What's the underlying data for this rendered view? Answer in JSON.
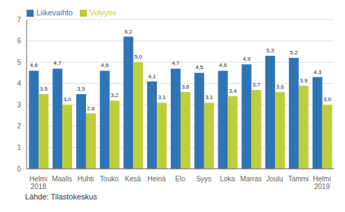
{
  "chart_data": {
    "type": "bar",
    "categories": [
      "Helmi\n2018",
      "Maalis",
      "Huhti",
      "Touko",
      "Kesä",
      "Heinä",
      "Elo",
      "Syys",
      "Loka",
      "Marras",
      "Joulu",
      "Tammi",
      "Helmi\n2019"
    ],
    "series": [
      {
        "name": "Liikevaihto",
        "color": "#2E75B6",
        "values": [
          4.6,
          4.7,
          3.5,
          4.6,
          6.2,
          4.1,
          4.7,
          4.5,
          4.6,
          4.9,
          5.3,
          5.2,
          4.3
        ],
        "value_labels": [
          "4,6",
          "4,7",
          "3,5",
          "4,6",
          "6,2",
          "4,1",
          "4,7",
          "4,5",
          "4,6",
          "4,9",
          "5,3",
          "5,2",
          "4,3"
        ]
      },
      {
        "name": "Volyymi",
        "color": "#BFCE3B",
        "values": [
          3.5,
          3.0,
          2.6,
          3.2,
          5.0,
          3.1,
          3.6,
          3.1,
          3.4,
          3.7,
          3.6,
          3.9,
          3.0
        ],
        "value_labels": [
          "3,5",
          "3,0",
          "2,6",
          "3,2",
          "5,0",
          "3,1",
          "3,6",
          "3,1",
          "3,4",
          "3,7",
          "3,6",
          "3,9",
          "3,0"
        ]
      }
    ],
    "ylim": [
      0,
      7
    ],
    "yticks": [
      0,
      1,
      2,
      3,
      4,
      5,
      6,
      7
    ],
    "grid": true,
    "legend": "upper left",
    "data_labels": true,
    "annotations": [
      "Lähde: Tilastokeskus"
    ]
  }
}
